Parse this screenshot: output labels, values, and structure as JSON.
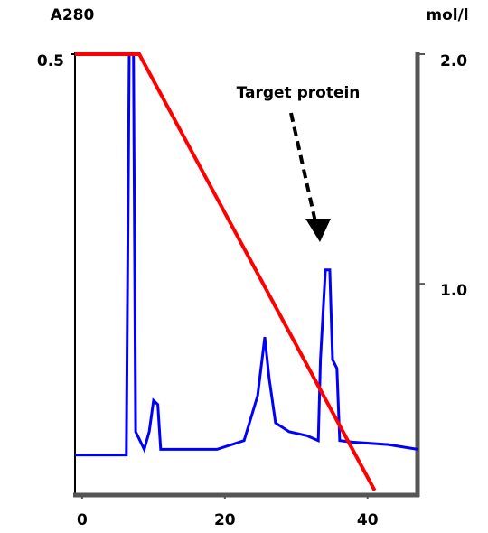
{
  "chart_data": {
    "type": "line",
    "y_label": "A280",
    "y2_label": "mol/l",
    "annotation": "Target protein",
    "xlim": [
      -1,
      47
    ],
    "xticks": [
      0,
      20,
      40
    ],
    "ylim": [
      -0.05,
      0.5
    ],
    "yticks": [
      0.5
    ],
    "y2lim": [
      0.08,
      2.0
    ],
    "y2ticks": [
      {
        "value": 2.0,
        "label": "2.0"
      },
      {
        "value": 1.0,
        "label": "1.0"
      }
    ],
    "series": [
      {
        "color": "#0000ff",
        "x": [
          -1,
          6.2,
          6.6,
          7.2,
          7.5,
          8.1,
          8.7,
          9.4,
          10.0,
          10.6,
          11.0,
          12.5,
          18.9,
          22.7,
          24.6,
          25.6,
          26.2,
          27.1,
          29.0,
          31.5,
          33.1,
          33.4,
          34.1,
          34.7,
          35.1,
          35.7,
          36.1,
          37.9,
          42.9,
          47
        ],
        "values": [
          0,
          0,
          0.5,
          0.5,
          0.029,
          0.018,
          0.007,
          0.029,
          0.068,
          0.063,
          0.007,
          0.007,
          0.007,
          0.018,
          0.074,
          0.147,
          0.096,
          0.04,
          0.029,
          0.024,
          0.018,
          0.119,
          0.231,
          0.231,
          0.119,
          0.108,
          0.018,
          0.016,
          0.013,
          0.007
        ]
      },
      {
        "color": "#ff0000",
        "axis": "y2",
        "x": [
          -1,
          8,
          41
        ],
        "values": [
          2.0,
          2.0,
          0.1
        ]
      }
    ]
  }
}
